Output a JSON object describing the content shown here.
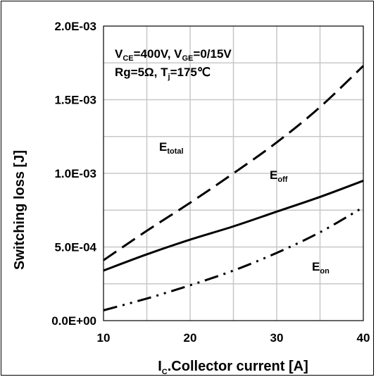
{
  "chart_data": {
    "type": "line",
    "title": "",
    "xlabel": "I",
    "xlabel_sub": "C",
    "xlabel_rest": ".Collector current [A]",
    "ylabel": "Switching loss [J]",
    "xlim": [
      10,
      40
    ],
    "ylim": [
      0,
      0.002
    ],
    "x_ticks": [
      "10",
      "20",
      "30",
      "40"
    ],
    "y_ticks": [
      "0.0E+00",
      "5.0E-04",
      "1.0E-03",
      "1.5E-03",
      "2.0E-03"
    ],
    "x_grid": [
      15,
      20,
      25,
      30,
      35
    ],
    "y_grid": [
      0.00025,
      0.0005,
      0.00075,
      0.001,
      0.00125,
      0.0015,
      0.00175
    ],
    "grid": true,
    "legend": "none",
    "x": [
      10,
      15,
      20,
      25,
      30,
      35,
      40
    ],
    "series": [
      {
        "name": "E_total",
        "style": "dashed",
        "values": [
          0.00041,
          0.00061,
          0.0008,
          0.001,
          0.00121,
          0.00145,
          0.00173
        ]
      },
      {
        "name": "E_off",
        "style": "solid",
        "values": [
          0.00034,
          0.00045,
          0.00055,
          0.00064,
          0.00074,
          0.00084,
          0.00095
        ]
      },
      {
        "name": "E_on",
        "style": "dashdotdot",
        "values": [
          7e-05,
          0.00015,
          0.00024,
          0.00034,
          0.00046,
          0.0006,
          0.00077
        ]
      }
    ],
    "conditions": {
      "line1": [
        {
          "t": "V",
          "sub": false
        },
        {
          "t": "CE",
          "sub": true
        },
        {
          "t": "=400V, V",
          "sub": false
        },
        {
          "t": "GE",
          "sub": true
        },
        {
          "t": "=0/15V",
          "sub": false
        }
      ],
      "line2": [
        {
          "t": "Rg=5Ω, T",
          "sub": false
        },
        {
          "t": "j",
          "sub": true
        },
        {
          "t": "=175℃",
          "sub": false
        }
      ]
    },
    "curve_labels": [
      {
        "main": "E",
        "sub": "total"
      },
      {
        "main": "E",
        "sub": "off"
      },
      {
        "main": "E",
        "sub": "on"
      }
    ]
  }
}
